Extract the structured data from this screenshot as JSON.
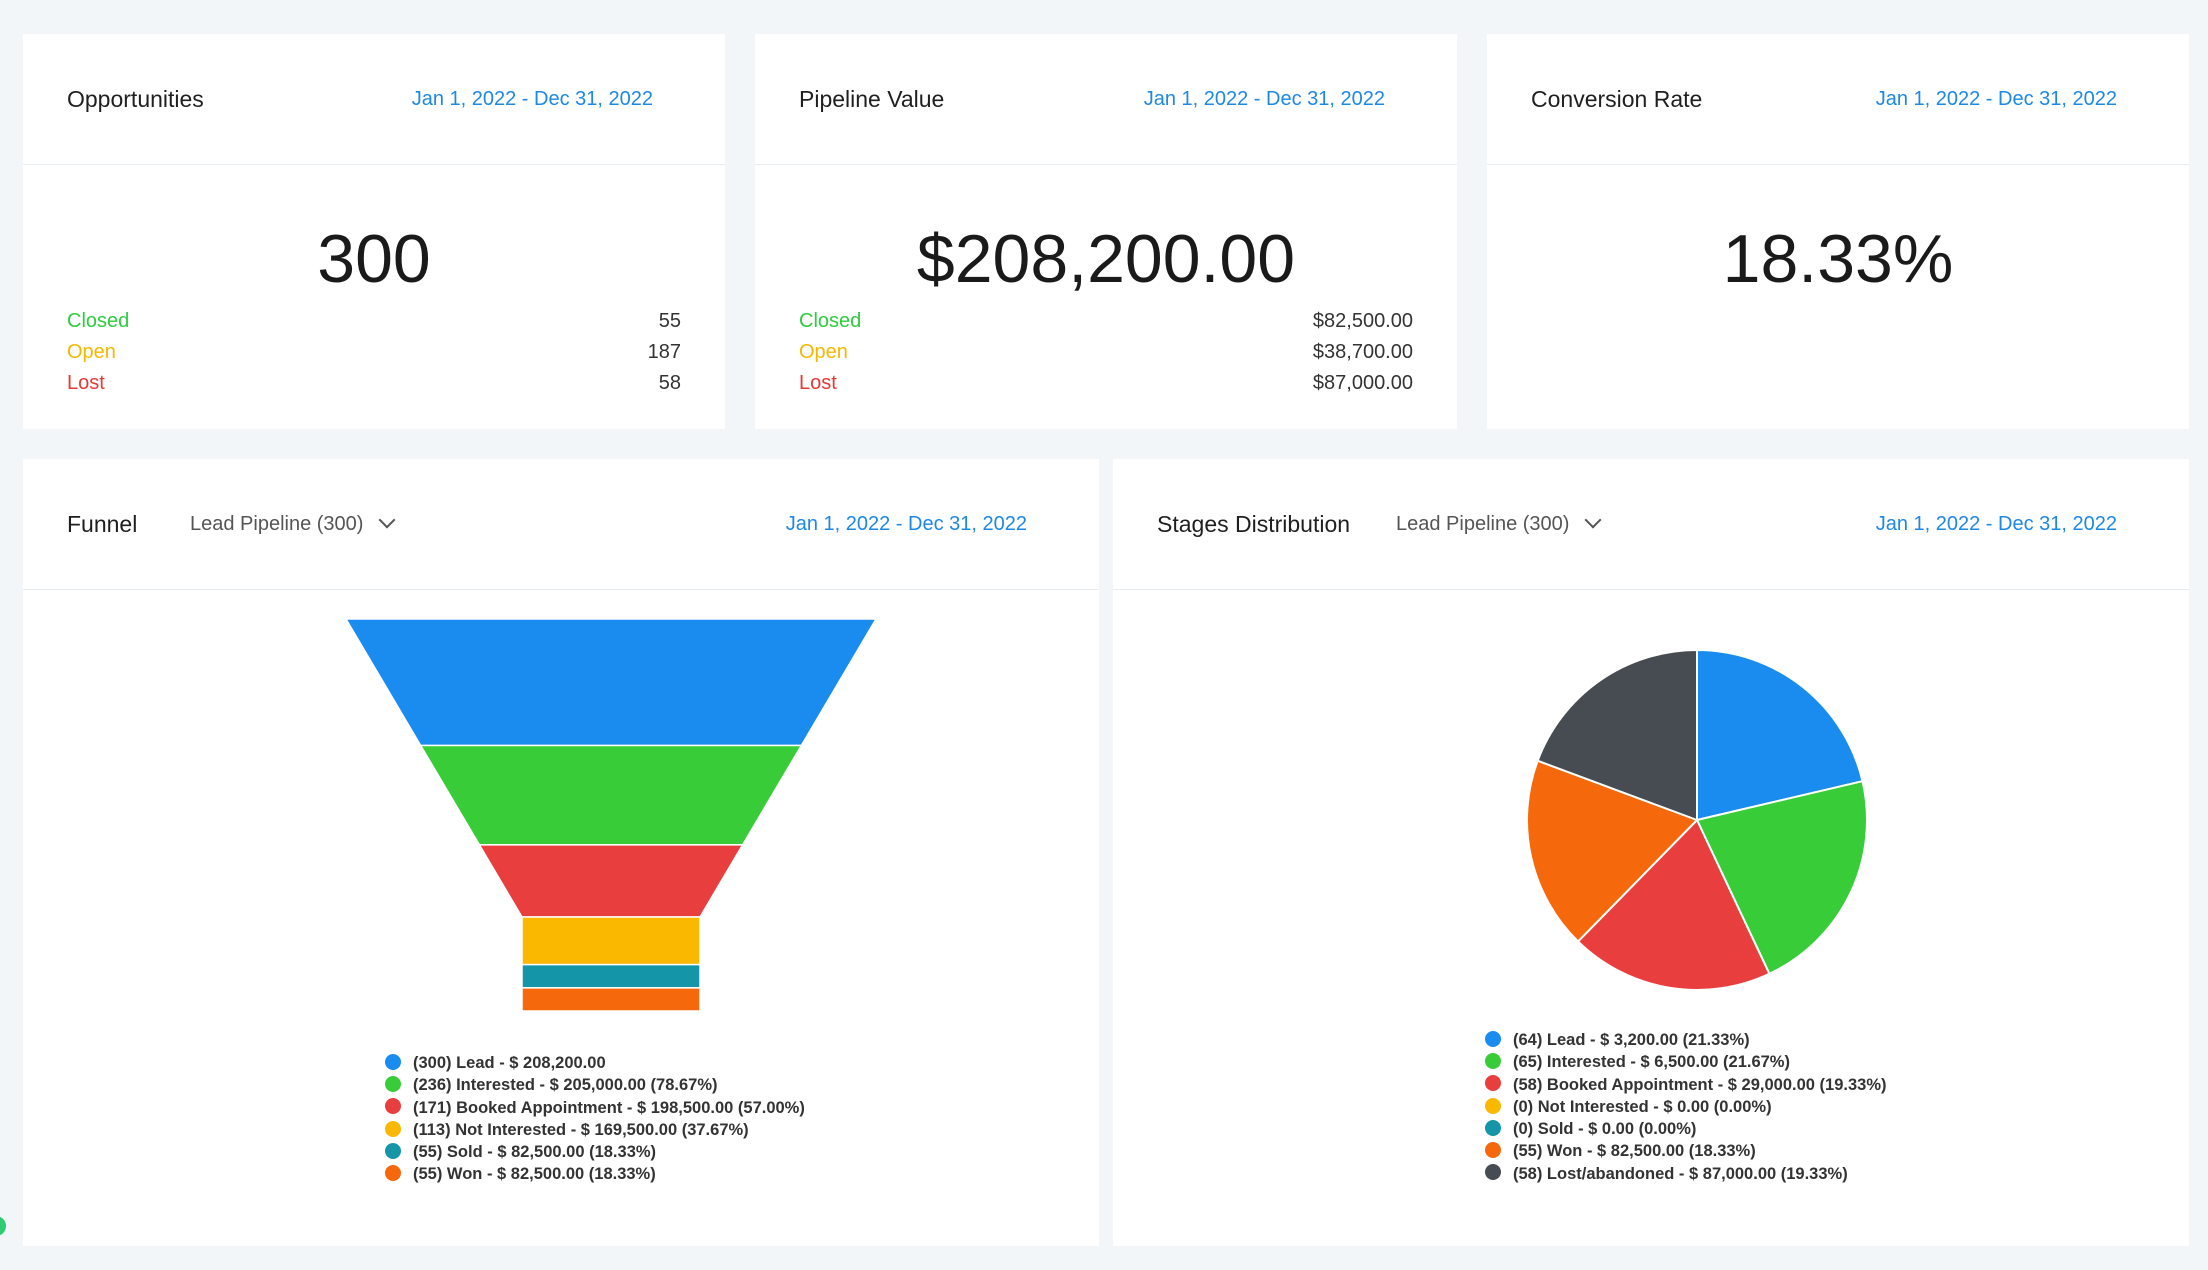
{
  "opportunities": {
    "title": "Opportunities",
    "date_range": "Jan 1, 2022 - Dec 31, 2022",
    "value": "300",
    "rows": [
      {
        "label": "Closed",
        "value": "55"
      },
      {
        "label": "Open",
        "value": "187"
      },
      {
        "label": "Lost",
        "value": "58"
      }
    ]
  },
  "pipeline_value": {
    "title": "Pipeline Value",
    "date_range": "Jan 1, 2022 - Dec 31, 2022",
    "value": "$208,200.00",
    "rows": [
      {
        "label": "Closed",
        "value": "$82,500.00"
      },
      {
        "label": "Open",
        "value": "$38,700.00"
      },
      {
        "label": "Lost",
        "value": "$87,000.00"
      }
    ]
  },
  "conversion_rate": {
    "title": "Conversion Rate",
    "date_range": "Jan 1, 2022 - Dec 31, 2022",
    "value": "18.33%"
  },
  "funnel": {
    "title": "Funnel",
    "pipeline_select": "Lead Pipeline (300)",
    "date_range": "Jan 1, 2022 - Dec 31, 2022"
  },
  "stages": {
    "title": "Stages Distribution",
    "pipeline_select": "Lead Pipeline (300)",
    "date_range": "Jan 1, 2022 - Dec 31, 2022"
  },
  "colors": {
    "blue": "#1a8cf0",
    "green": "#39cc39",
    "red": "#e83e3e",
    "yellow": "#fbb800",
    "teal": "#1595a8",
    "orange": "#f5680b",
    "dark": "#474c53",
    "accent": "#1e88e5"
  },
  "chart_data": [
    {
      "type": "funnel",
      "series": [
        {
          "name": "Lead",
          "count": 300,
          "value": 208200,
          "label": "(300) Lead - $ 208,200.00",
          "color": "#1a8cf0"
        },
        {
          "name": "Interested",
          "count": 236,
          "value": 205000,
          "percent": 78.67,
          "label": "(236) Interested - $ 205,000.00 (78.67%)",
          "color": "#39cc39"
        },
        {
          "name": "Booked Appointment",
          "count": 171,
          "value": 198500,
          "percent": 57.0,
          "label": "(171) Booked Appointment - $ 198,500.00 (57.00%)",
          "color": "#e83e3e"
        },
        {
          "name": "Not Interested",
          "count": 113,
          "value": 169500,
          "percent": 37.67,
          "label": "(113) Not Interested - $ 169,500.00 (37.67%)",
          "color": "#fbb800"
        },
        {
          "name": "Sold",
          "count": 55,
          "value": 82500,
          "percent": 18.33,
          "label": "(55) Sold - $ 82,500.00 (18.33%)",
          "color": "#1595a8"
        },
        {
          "name": "Won",
          "count": 55,
          "value": 82500,
          "percent": 18.33,
          "label": "(55) Won - $ 82,500.00 (18.33%)",
          "color": "#f5680b"
        }
      ]
    },
    {
      "type": "pie",
      "series": [
        {
          "name": "Lead",
          "count": 64,
          "value": 3200,
          "percent": 21.33,
          "label": "(64) Lead - $ 3,200.00 (21.33%)",
          "color": "#1a8cf0"
        },
        {
          "name": "Interested",
          "count": 65,
          "value": 6500,
          "percent": 21.67,
          "label": "(65) Interested - $ 6,500.00 (21.67%)",
          "color": "#39cc39"
        },
        {
          "name": "Booked Appointment",
          "count": 58,
          "value": 29000,
          "percent": 19.33,
          "label": "(58) Booked Appointment - $ 29,000.00 (19.33%)",
          "color": "#e83e3e"
        },
        {
          "name": "Not Interested",
          "count": 0,
          "value": 0,
          "percent": 0.0,
          "label": "(0) Not Interested - $ 0.00 (0.00%)",
          "color": "#fbb800"
        },
        {
          "name": "Sold",
          "count": 0,
          "value": 0,
          "percent": 0.0,
          "label": "(0) Sold - $ 0.00 (0.00%)",
          "color": "#1595a8"
        },
        {
          "name": "Won",
          "count": 55,
          "value": 82500,
          "percent": 18.33,
          "label": "(55) Won - $ 82,500.00 (18.33%)",
          "color": "#f5680b"
        },
        {
          "name": "Lost/abandoned",
          "count": 58,
          "value": 87000,
          "percent": 19.33,
          "label": "(58) Lost/abandoned - $ 87,000.00 (19.33%)",
          "color": "#474c53"
        }
      ]
    }
  ]
}
